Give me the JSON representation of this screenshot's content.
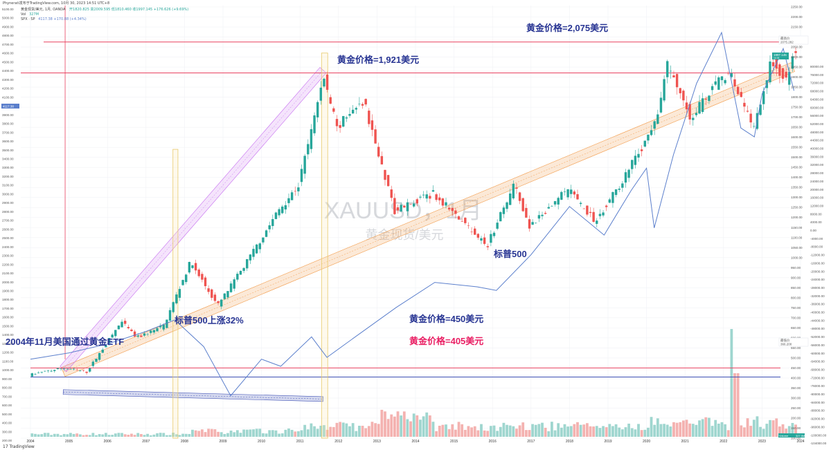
{
  "header": {
    "author_line": "Phynerati发布于TradingView.com, 10月 30, 2023 14:51 UTC+8",
    "symbol_line": "黄金现货/美元, 1月, OANDA",
    "ohlc_values": "开1820.825 高2009.595 低1810.460 收1997.145 +176.626 (+9.69%)",
    "vol_label": "Vol",
    "vol_value": "327M",
    "spx_label": "SPX · SP",
    "spx_value": "4117.38 +170.88 (+4.34%)",
    "logo_text": "TradingView"
  },
  "colors": {
    "up": "#26a69a",
    "down": "#ef5350",
    "spx_line": "#5b7fcc",
    "level_red": "#e8405f",
    "level_blue": "#3f51b5",
    "channel_orange": "#f29b4a",
    "channel_purple": "#c56cf0",
    "annot_blue": "#283593",
    "annot_pink": "#e91e63"
  },
  "annotations": {
    "gold_2075": "黄金价格=2,075美元",
    "gold_1921": "黄金价格=1,921美元",
    "gold_450": "黄金价格=450美元",
    "gold_405": "黄金价格=405美元",
    "spx_up": "标普500上涨32%",
    "etf": "2004年11月美国通过黄金ETF",
    "spx": "标普500",
    "watermark_symbol": "XAUUSD，1月",
    "watermark_name": "黄金现货/美元"
  },
  "price_tags": {
    "high_label": "最高价",
    "high_value": "2075.282",
    "current_value": "1997.145",
    "current_sub": "14 01",
    "low_label": "最低价",
    "low_value": "366.200",
    "spx_tag": "4117.38",
    "volume_label": "Volume",
    "volume_tag": "327.5M"
  },
  "chart_data": {
    "type": "candlestick",
    "title": "XAUUSD，1月",
    "series": [
      {
        "name": "黄金现货/美元",
        "type": "candlestick"
      },
      {
        "name": "SPX",
        "type": "line"
      },
      {
        "name": "Volume",
        "type": "bar"
      }
    ],
    "x_tick_labels": [
      "2004",
      "2005",
      "2006",
      "2007",
      "2008",
      "2009",
      "2010",
      "2011",
      "2012",
      "2013",
      "2014",
      "2015",
      "2016",
      "2017",
      "2018",
      "2019",
      "2020",
      "2021",
      "2022",
      "2023",
      "2024"
    ],
    "left_axis_ticks": [
      5100,
      5000,
      4900,
      4800,
      4700,
      4600,
      4500,
      4400,
      4300,
      4200,
      4100,
      4000,
      3900,
      3800,
      3700,
      3600,
      3500,
      3400,
      3300,
      3200,
      3100,
      3000,
      2900,
      2800,
      2700,
      2600,
      2500,
      2400,
      2300,
      2200,
      2100,
      2000,
      1900,
      1800,
      1700,
      1600,
      1500,
      1400,
      1300,
      1200,
      1100,
      1000,
      900,
      800,
      700,
      600,
      500,
      400,
      300,
      200
    ],
    "right_gold_ticks": [
      2250,
      2200,
      2150,
      2100,
      2050,
      2000,
      1950,
      1900,
      1850,
      1800,
      1750,
      1700,
      1650,
      1600,
      1550,
      1500,
      1450,
      1400,
      1350,
      1300,
      1250,
      1200,
      1150,
      1100,
      1050,
      1000,
      950,
      900,
      850,
      800,
      750,
      700,
      650,
      600,
      550,
      500,
      450,
      400,
      350,
      300,
      250,
      200,
      150,
      100
    ],
    "right_spx_ticks": [
      80000,
      76000,
      72000,
      68000,
      64000,
      60000,
      56000,
      52000,
      48000,
      44000,
      40000,
      36000,
      32000,
      28000,
      24000,
      20000,
      16000,
      12000,
      8000,
      4000,
      0,
      -4000,
      -8000,
      -12000,
      -16000,
      -20000,
      -24000,
      -28000,
      -32000,
      -36000,
      -40000,
      -44000,
      -48000,
      -52000,
      -56000,
      -60000,
      -64000,
      -68000,
      -72000,
      -76000,
      -80000,
      -84000,
      -88000,
      -92000,
      -96000,
      -100000,
      -104000
    ],
    "y_range_gold": [
      100,
      2250
    ],
    "horizontal_levels": [
      2075,
      1921,
      450,
      405
    ],
    "gold_yearly_path": [
      {
        "t": 2004.0,
        "v": 415
      },
      {
        "t": 2004.9,
        "v": 450
      },
      {
        "t": 2005.5,
        "v": 430
      },
      {
        "t": 2006.4,
        "v": 680
      },
      {
        "t": 2006.8,
        "v": 600
      },
      {
        "t": 2007.5,
        "v": 660
      },
      {
        "t": 2008.2,
        "v": 980
      },
      {
        "t": 2008.9,
        "v": 760
      },
      {
        "t": 2009.6,
        "v": 960
      },
      {
        "t": 2010.5,
        "v": 1240
      },
      {
        "t": 2011.0,
        "v": 1360
      },
      {
        "t": 2011.65,
        "v": 1900
      },
      {
        "t": 2012.0,
        "v": 1650
      },
      {
        "t": 2012.7,
        "v": 1780
      },
      {
        "t": 2013.5,
        "v": 1230
      },
      {
        "t": 2014.5,
        "v": 1320
      },
      {
        "t": 2015.9,
        "v": 1060
      },
      {
        "t": 2016.6,
        "v": 1360
      },
      {
        "t": 2017.0,
        "v": 1150
      },
      {
        "t": 2018.0,
        "v": 1340
      },
      {
        "t": 2018.7,
        "v": 1180
      },
      {
        "t": 2019.5,
        "v": 1410
      },
      {
        "t": 2020.3,
        "v": 1680
      },
      {
        "t": 2020.6,
        "v": 1970
      },
      {
        "t": 2021.2,
        "v": 1700
      },
      {
        "t": 2022.2,
        "v": 1940
      },
      {
        "t": 2022.8,
        "v": 1640
      },
      {
        "t": 2023.3,
        "v": 1990
      },
      {
        "t": 2023.7,
        "v": 1870
      },
      {
        "t": 2023.83,
        "v": 1997
      }
    ],
    "spx_path": [
      {
        "t": 2004.0,
        "v": 1110
      },
      {
        "t": 2005.0,
        "v": 1180
      },
      {
        "t": 2006.0,
        "v": 1280
      },
      {
        "t": 2007.0,
        "v": 1420
      },
      {
        "t": 2007.75,
        "v": 1550
      },
      {
        "t": 2008.5,
        "v": 1250
      },
      {
        "t": 2009.2,
        "v": 700
      },
      {
        "t": 2010.0,
        "v": 1110
      },
      {
        "t": 2010.5,
        "v": 1030
      },
      {
        "t": 2011.3,
        "v": 1360
      },
      {
        "t": 2011.7,
        "v": 1130
      },
      {
        "t": 2012.5,
        "v": 1380
      },
      {
        "t": 2013.5,
        "v": 1690
      },
      {
        "t": 2014.5,
        "v": 1970
      },
      {
        "t": 2015.6,
        "v": 1920
      },
      {
        "t": 2016.1,
        "v": 1880
      },
      {
        "t": 2017.0,
        "v": 2280
      },
      {
        "t": 2018.0,
        "v": 2820
      },
      {
        "t": 2018.9,
        "v": 2500
      },
      {
        "t": 2019.6,
        "v": 3000
      },
      {
        "t": 2020.0,
        "v": 3250
      },
      {
        "t": 2020.2,
        "v": 2580
      },
      {
        "t": 2020.7,
        "v": 3400
      },
      {
        "t": 2021.3,
        "v": 4200
      },
      {
        "t": 2021.95,
        "v": 4770
      },
      {
        "t": 2022.45,
        "v": 3700
      },
      {
        "t": 2022.8,
        "v": 3600
      },
      {
        "t": 2023.0,
        "v": 4080
      },
      {
        "t": 2023.55,
        "v": 4590
      },
      {
        "t": 2023.83,
        "v": 4117
      }
    ]
  }
}
